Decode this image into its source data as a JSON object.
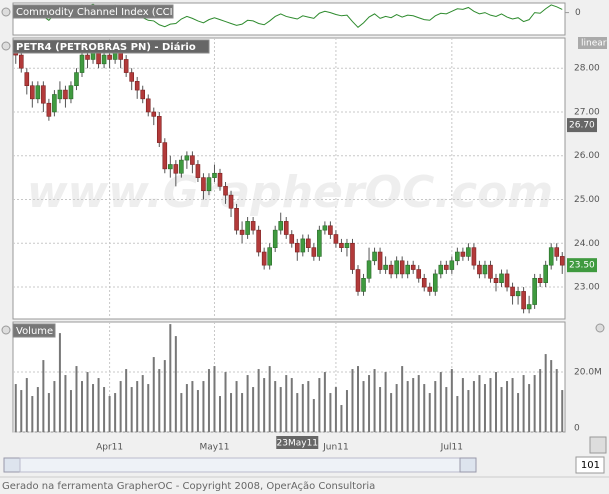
{
  "cci": {
    "title": "Commodity Channel Index (CCI)",
    "color": "#2e8b2e",
    "ylim": [
      -350,
      150
    ],
    "yticks": [
      0
    ],
    "values": [
      80,
      60,
      20,
      -40,
      0,
      -60,
      -120,
      -20,
      30,
      10,
      40,
      80,
      120,
      100,
      130,
      90,
      110,
      100,
      120,
      90,
      40,
      0,
      -40,
      -80,
      -120,
      -130,
      -190,
      -220,
      -180,
      -170,
      -100,
      -60,
      -90,
      -130,
      -160,
      -110,
      -80,
      -110,
      -140,
      -170,
      -200,
      -180,
      -120,
      -130,
      -170,
      -190,
      -130,
      -60,
      -20,
      -60,
      -80,
      -100,
      -50,
      -70,
      -90,
      -10,
      20,
      0,
      -30,
      -50,
      -40,
      -140,
      -230,
      -160,
      -70,
      -20,
      -90,
      -60,
      -80,
      -30,
      -70,
      -40,
      -50,
      -80,
      -110,
      -120,
      -50,
      -10,
      -20,
      20,
      60,
      50,
      80,
      20,
      -20,
      0,
      -40,
      -60,
      -20,
      -70,
      -100,
      -80,
      -140,
      -110,
      0,
      -10,
      60,
      120,
      90,
      50
    ]
  },
  "price": {
    "type": "candlestick",
    "title": "PETR4 (PETROBRAS  PN) - Diário",
    "scale_button": "linear",
    "watermark": "www.GrapherOC.com",
    "up_color": "#3f9a3f",
    "down_color": "#b23a3a",
    "ylim": [
      22.27,
      28.69
    ],
    "yticks": [
      {
        "value": 23,
        "label": "23.00"
      },
      {
        "value": 24,
        "label": "24.00"
      },
      {
        "value": 25,
        "label": "25.00"
      },
      {
        "value": 26,
        "label": "26.00"
      },
      {
        "value": 27,
        "label": "27.00"
      },
      {
        "value": 28,
        "label": "28.00"
      }
    ],
    "markers": [
      {
        "value": 26.7,
        "label": "26.70",
        "color": "#666666"
      },
      {
        "value": 23.5,
        "label": "23.50",
        "color": "#3f9a3f"
      }
    ],
    "open": [
      28.5,
      28.3,
      27.9,
      27.6,
      27.3,
      27.6,
      27.2,
      27.0,
      27.3,
      27.5,
      27.3,
      27.6,
      27.9,
      28.3,
      28.2,
      28.4,
      28.1,
      28.3,
      28.2,
      28.4,
      28.2,
      27.9,
      27.7,
      27.5,
      27.3,
      27.0,
      26.9,
      26.3,
      25.7,
      25.8,
      25.6,
      25.9,
      26.0,
      25.8,
      25.5,
      25.2,
      25.5,
      25.6,
      25.3,
      25.1,
      24.8,
      24.3,
      24.2,
      24.5,
      24.3,
      23.8,
      23.5,
      23.9,
      24.3,
      24.5,
      24.2,
      24.0,
      23.8,
      24.1,
      23.9,
      23.7,
      24.3,
      24.4,
      24.2,
      24.0,
      23.9,
      24.0,
      23.4,
      22.9,
      23.2,
      23.6,
      23.8,
      23.4,
      23.5,
      23.3,
      23.6,
      23.3,
      23.5,
      23.4,
      23.2,
      23.0,
      22.9,
      23.3,
      23.5,
      23.4,
      23.6,
      23.8,
      23.7,
      23.9,
      23.5,
      23.3,
      23.5,
      23.2,
      23.1,
      23.3,
      23.0,
      22.8,
      22.9,
      22.5,
      22.6,
      23.2,
      23.1,
      23.5,
      23.9,
      23.7
    ],
    "high": [
      28.6,
      28.4,
      28.0,
      27.7,
      27.7,
      27.7,
      27.3,
      27.5,
      27.7,
      27.6,
      27.7,
      28.0,
      28.4,
      28.5,
      28.6,
      28.5,
      28.5,
      28.4,
      28.6,
      28.5,
      28.3,
      28.0,
      27.8,
      27.6,
      27.4,
      27.1,
      27.0,
      26.4,
      26.0,
      25.9,
      26.0,
      26.1,
      26.1,
      25.9,
      25.6,
      25.6,
      25.8,
      25.7,
      25.4,
      25.2,
      24.9,
      24.5,
      24.6,
      24.6,
      24.4,
      23.9,
      24.0,
      24.4,
      24.7,
      24.6,
      24.3,
      24.1,
      24.2,
      24.2,
      24.0,
      24.4,
      24.5,
      24.5,
      24.3,
      24.1,
      24.1,
      24.1,
      23.5,
      23.3,
      23.9,
      23.9,
      23.9,
      23.7,
      23.6,
      23.7,
      23.7,
      23.6,
      23.6,
      23.5,
      23.3,
      23.1,
      23.4,
      23.6,
      23.6,
      23.7,
      23.9,
      23.9,
      24.0,
      24.0,
      23.6,
      23.6,
      23.6,
      23.3,
      23.4,
      23.4,
      23.1,
      23.0,
      23.0,
      22.8,
      23.3,
      23.3,
      23.6,
      24.0,
      24.0,
      23.8
    ],
    "low": [
      28.1,
      27.9,
      27.4,
      27.1,
      27.2,
      27.0,
      26.8,
      26.9,
      27.2,
      27.1,
      27.2,
      27.5,
      27.8,
      28.0,
      28.1,
      28.0,
      28.0,
      28.0,
      28.1,
      28.0,
      27.8,
      27.5,
      27.3,
      27.2,
      26.9,
      26.7,
      26.2,
      25.6,
      25.5,
      25.3,
      25.5,
      25.7,
      25.6,
      25.4,
      25.0,
      25.1,
      25.4,
      25.2,
      24.9,
      24.6,
      24.2,
      24.0,
      24.1,
      24.2,
      23.7,
      23.4,
      23.4,
      23.8,
      24.2,
      24.1,
      23.9,
      23.6,
      23.7,
      23.8,
      23.6,
      23.6,
      24.2,
      24.1,
      23.9,
      23.8,
      23.7,
      23.3,
      22.8,
      22.8,
      23.1,
      23.5,
      23.3,
      23.3,
      23.2,
      23.2,
      23.2,
      23.2,
      23.3,
      23.1,
      22.9,
      22.8,
      22.8,
      23.2,
      23.3,
      23.3,
      23.5,
      23.6,
      23.6,
      23.4,
      23.2,
      23.2,
      23.1,
      22.9,
      23.0,
      22.9,
      22.6,
      22.6,
      22.4,
      22.4,
      22.5,
      23.0,
      23.0,
      23.4,
      23.6,
      23.3
    ],
    "close": [
      28.3,
      28.0,
      27.6,
      27.3,
      27.6,
      27.2,
      26.9,
      27.4,
      27.5,
      27.3,
      27.6,
      27.9,
      28.3,
      28.2,
      28.4,
      28.1,
      28.3,
      28.2,
      28.4,
      28.2,
      27.9,
      27.7,
      27.5,
      27.3,
      27.0,
      26.9,
      26.3,
      25.7,
      25.8,
      25.6,
      25.9,
      26.0,
      25.8,
      25.5,
      25.2,
      25.5,
      25.6,
      25.3,
      25.1,
      24.8,
      24.3,
      24.2,
      24.5,
      24.3,
      23.8,
      23.5,
      23.9,
      24.3,
      24.5,
      24.2,
      24.0,
      23.8,
      24.1,
      23.9,
      23.7,
      24.3,
      24.4,
      24.2,
      24.0,
      23.9,
      24.0,
      23.4,
      22.9,
      23.2,
      23.6,
      23.8,
      23.4,
      23.5,
      23.3,
      23.6,
      23.3,
      23.5,
      23.4,
      23.2,
      23.0,
      22.9,
      23.3,
      23.5,
      23.4,
      23.6,
      23.8,
      23.7,
      23.9,
      23.5,
      23.3,
      23.5,
      23.2,
      23.1,
      23.3,
      23.0,
      22.8,
      22.9,
      22.5,
      22.6,
      23.2,
      23.1,
      23.5,
      23.9,
      23.7,
      23.5
    ]
  },
  "volume": {
    "title": "Volume",
    "color": "#777777",
    "ylim": [
      0,
      36.7
    ],
    "yticks": [
      0,
      {
        "value": 20,
        "label": "20.0M"
      }
    ],
    "values": [
      16,
      14,
      18,
      12,
      15,
      24,
      13,
      17,
      33,
      19,
      14,
      22,
      17,
      20,
      16,
      18,
      15,
      12,
      13,
      17,
      21,
      15,
      17,
      19,
      16,
      25,
      21,
      24,
      36,
      32,
      13,
      16,
      17,
      14,
      17,
      21,
      22,
      12,
      20,
      13,
      17,
      13,
      19,
      15,
      21,
      18,
      22,
      17,
      15,
      19,
      18,
      13,
      16,
      17,
      11,
      18,
      20,
      13,
      15,
      9,
      14,
      21,
      22,
      17,
      19,
      21,
      15,
      20,
      13,
      16,
      22,
      17,
      18,
      19,
      16,
      13,
      17,
      20,
      15,
      21,
      12,
      18,
      14,
      17,
      19,
      16,
      18,
      20,
      15,
      17,
      18,
      13,
      19,
      16,
      19,
      21,
      26,
      24,
      21,
      14
    ]
  },
  "categories": [
    null,
    null,
    null,
    null,
    null,
    null,
    null,
    null,
    null,
    null,
    null,
    null,
    null,
    null,
    null,
    null,
    null,
    "Apr11",
    null,
    null,
    null,
    null,
    null,
    null,
    null,
    null,
    null,
    null,
    null,
    null,
    null,
    null,
    null,
    null,
    null,
    null,
    "May11",
    null,
    null,
    null,
    null,
    null,
    null,
    null,
    null,
    null,
    null,
    null,
    null,
    null,
    null,
    null,
    null,
    null,
    null,
    null,
    null,
    null,
    "Jun11",
    null,
    null,
    null,
    null,
    null,
    null,
    null,
    null,
    null,
    null,
    null,
    null,
    null,
    null,
    null,
    null,
    null,
    null,
    null,
    null,
    "Jul11",
    null,
    null,
    null,
    null,
    null,
    null,
    null,
    null,
    null,
    null,
    null,
    null,
    null,
    null,
    null,
    null,
    null,
    null,
    null,
    null
  ],
  "cursor": {
    "label": "23May11",
    "category": 51
  },
  "zoom_value": 101,
  "footer": "Gerado na ferramenta GrapherOC - Copyright 2008, OperAção Consultoria"
}
